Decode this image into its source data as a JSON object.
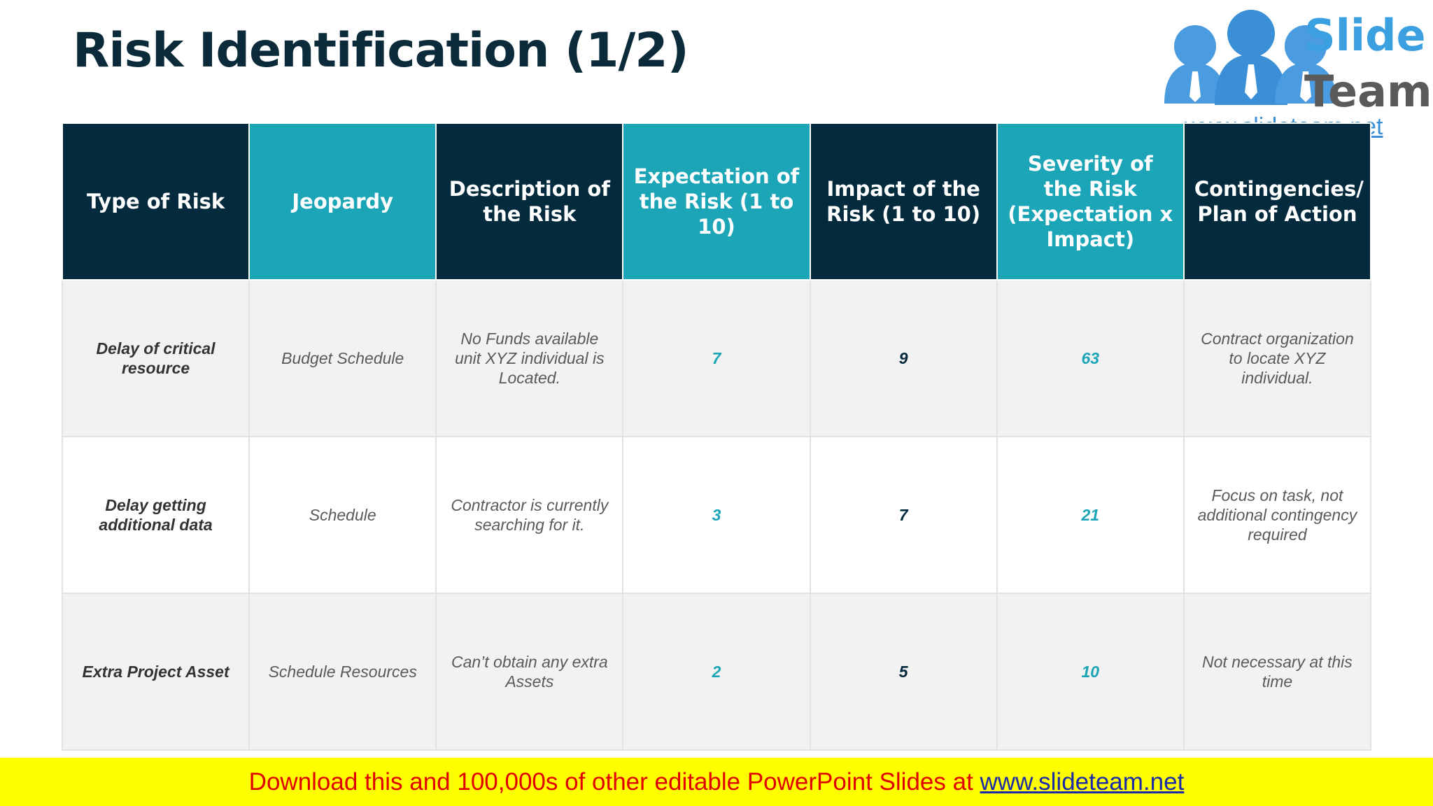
{
  "title": "Risk Identification (1/2)",
  "logo": {
    "word1": "Slide",
    "word2": "Team",
    "url": "www.slideteam.net"
  },
  "table": {
    "headers": [
      "Type of Risk",
      "Jeopardy",
      "Description of the Risk",
      "Expectation of the Risk (1 to 10)",
      "Impact of the Risk (1 to 10)",
      "Severity of the Risk (Expectation x Impact)",
      "Contingencies/ Plan of Action"
    ],
    "rows": [
      {
        "type": "Delay of critical resource",
        "jeopardy": "Budget Schedule",
        "description": "No Funds available unit XYZ individual is Located.",
        "expectation": "7",
        "impact": "9",
        "severity": "63",
        "contingency": "Contract organization to locate XYZ individual."
      },
      {
        "type": "Delay getting additional data",
        "jeopardy": "Schedule",
        "description": "Contractor is currently searching for it.",
        "expectation": "3",
        "impact": "7",
        "severity": "21",
        "contingency": "Focus on task, not additional contingency required"
      },
      {
        "type": "Extra Project Asset",
        "jeopardy": "Schedule Resources",
        "description": "Can’t obtain any extra Assets",
        "expectation": "2",
        "impact": "5",
        "severity": "10",
        "contingency": "Not necessary at this time"
      }
    ]
  },
  "footer": {
    "text": "Download this and 100,000s of other editable PowerPoint Slides at ",
    "link": "www.slideteam.net"
  },
  "colors": {
    "dark_header": "#042b3d",
    "teal_header": "#1ba5b7",
    "title": "#0b2a3a",
    "footer_bg": "#ffff00",
    "footer_text": "#e00000"
  }
}
